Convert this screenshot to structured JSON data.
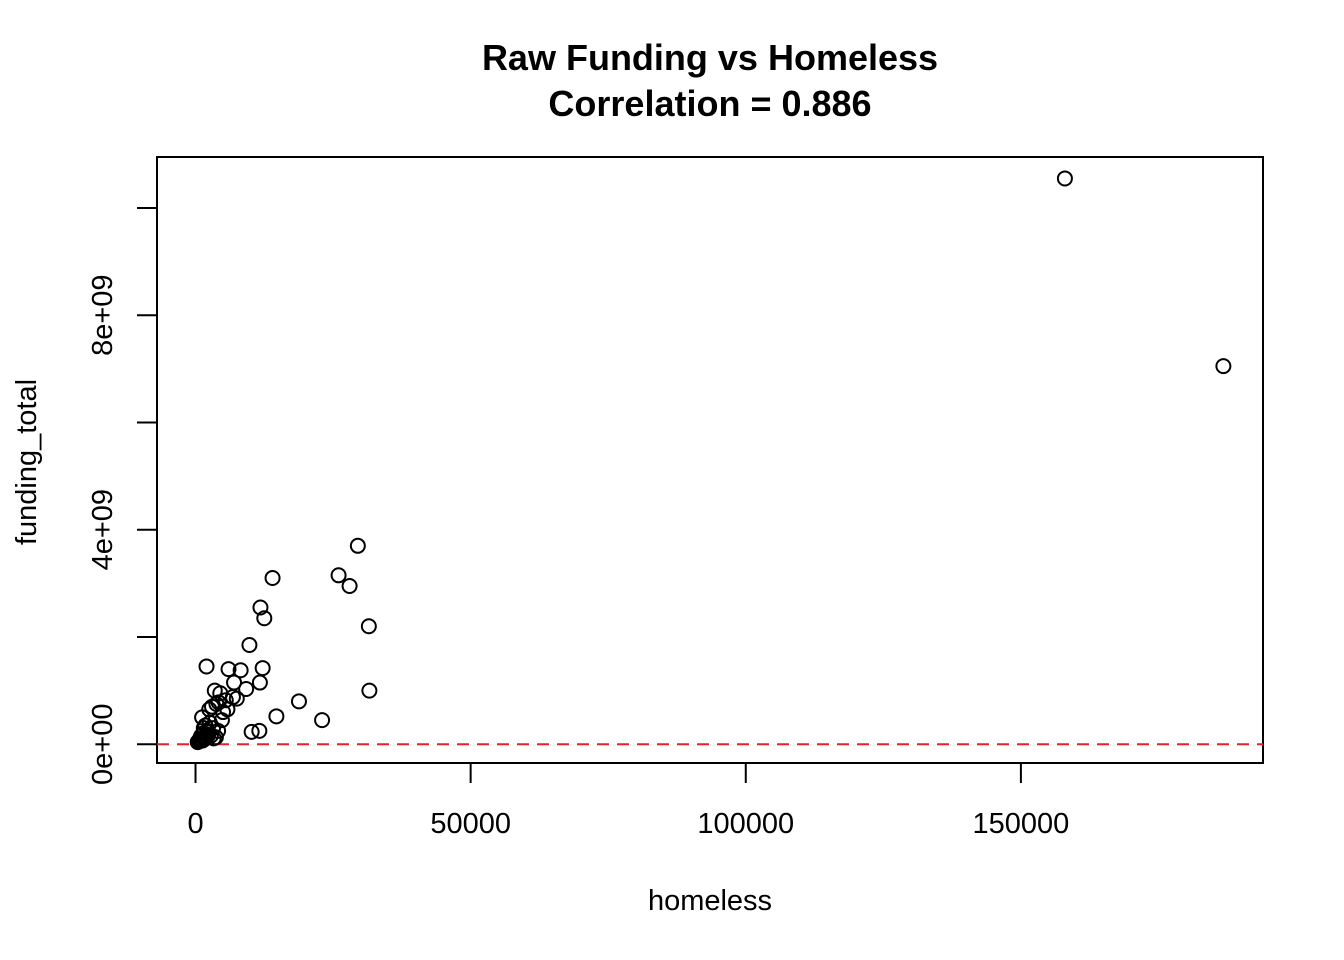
{
  "chart_data": {
    "type": "scatter",
    "title": "Raw Funding vs Homeless",
    "subtitle": "Correlation = 0.886",
    "xlabel": "homeless",
    "ylabel": "funding_total",
    "xlim": [
      -7000,
      194000
    ],
    "ylim": [
      -350000000,
      10950000000
    ],
    "x_ticks": [
      0,
      50000,
      100000,
      150000
    ],
    "x_tick_labels": [
      "0",
      "50000",
      "100000",
      "150000"
    ],
    "y_ticks": [
      0,
      2000000000,
      4000000000,
      6000000000,
      8000000000,
      10000000000
    ],
    "y_tick_labels": [
      "0e+00",
      "",
      "4e+09",
      "",
      "8e+09",
      ""
    ],
    "reference_line": {
      "y": 0,
      "color": "#e8202a",
      "style": "dashed"
    },
    "grid": false,
    "legend": "none",
    "point_style": "open-circle",
    "series": [
      {
        "x": [
          158000,
          186800,
          29500,
          26000,
          28000,
          14000,
          11800,
          12500,
          31500,
          31600,
          9800,
          6000,
          8200,
          12200,
          2000,
          11700,
          7000,
          18800,
          23000,
          14700,
          10200,
          11600,
          3500,
          4500,
          5500,
          6800,
          7500,
          9200,
          2500,
          3000,
          3800,
          4200,
          5000,
          5800,
          1200,
          1500,
          1800,
          2200,
          2600,
          3200,
          4800,
          600,
          800,
          1000,
          1400,
          1700,
          2000,
          2400,
          2800,
          3300,
          3700,
          4100,
          400,
          700,
          900,
          1100,
          1300,
          1600,
          1900,
          2300
        ],
        "y": [
          10550000000,
          7050000000,
          3700000000,
          3150000000,
          2950000000,
          3100000000,
          2550000000,
          2350000000,
          2200000000,
          1000000000,
          1850000000,
          1400000000,
          1380000000,
          1420000000,
          1450000000,
          1150000000,
          1150000000,
          800000000,
          450000000,
          520000000,
          230000000,
          250000000,
          1000000000,
          950000000,
          820000000,
          880000000,
          850000000,
          1030000000,
          650000000,
          700000000,
          750000000,
          780000000,
          600000000,
          650000000,
          500000000,
          300000000,
          350000000,
          250000000,
          400000000,
          300000000,
          450000000,
          50000000,
          100000000,
          150000000,
          200000000,
          120000000,
          180000000,
          220000000,
          160000000,
          110000000,
          130000000,
          250000000,
          40000000,
          60000000,
          80000000,
          90000000,
          70000000,
          95000000,
          140000000,
          170000000
        ]
      }
    ]
  }
}
